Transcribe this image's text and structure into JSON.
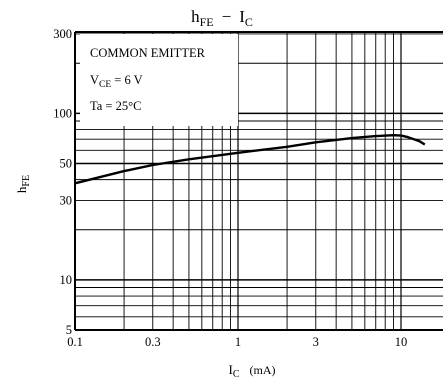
{
  "chart_data": {
    "type": "line",
    "title": {
      "main": "h",
      "main_sub": "FE",
      "dash": "−",
      "var": "I",
      "var_sub": "C"
    },
    "xlabel": {
      "main": "I",
      "sub": "C",
      "unit": "(mA)"
    },
    "ylabel": {
      "main": "h",
      "sub": "FE"
    },
    "x_scale": "log",
    "y_scale": "log",
    "xlim": [
      0.1,
      14
    ],
    "ylim": [
      5,
      300
    ],
    "x_ticks": [
      {
        "value": 0.1,
        "label": "0.1"
      },
      {
        "value": 0.3,
        "label": "0.3"
      },
      {
        "value": 1,
        "label": "1"
      },
      {
        "value": 3,
        "label": "3"
      },
      {
        "value": 10,
        "label": "10"
      }
    ],
    "y_ticks": [
      {
        "value": 5,
        "label": "5"
      },
      {
        "value": 10,
        "label": "10"
      },
      {
        "value": 30,
        "label": "30"
      },
      {
        "value": 50,
        "label": "50"
      },
      {
        "value": 100,
        "label": "100"
      },
      {
        "value": 300,
        "label": "300"
      }
    ],
    "grid": true,
    "annotation": {
      "line1": "COMMON EMITTER",
      "line2": {
        "main": "V",
        "sub": "CE",
        "rest": " = 6 V"
      },
      "line3": "Ta = 25°C"
    },
    "series": [
      {
        "x": [
          0.1,
          0.2,
          0.3,
          0.5,
          1,
          2,
          3,
          5,
          7,
          9,
          10,
          11,
          12,
          13,
          14
        ],
        "y": [
          38,
          45,
          49,
          53,
          58,
          63,
          67,
          71,
          73,
          74,
          73.5,
          72,
          70,
          68,
          65
        ]
      }
    ]
  }
}
